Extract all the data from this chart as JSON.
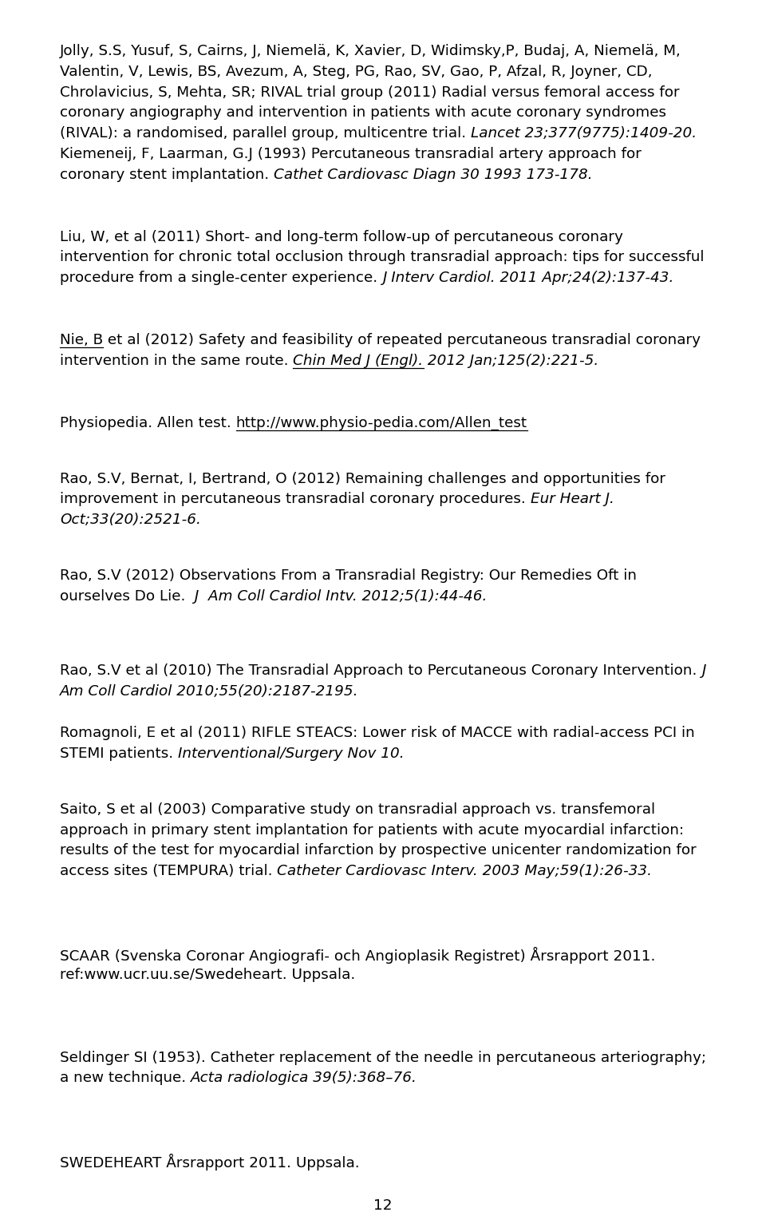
{
  "bg": "#ffffff",
  "fg": "#000000",
  "fs": 13.2,
  "lm": 0.052,
  "rm": 0.948,
  "figw": 9.6,
  "figh": 15.23,
  "dpi": 100
}
